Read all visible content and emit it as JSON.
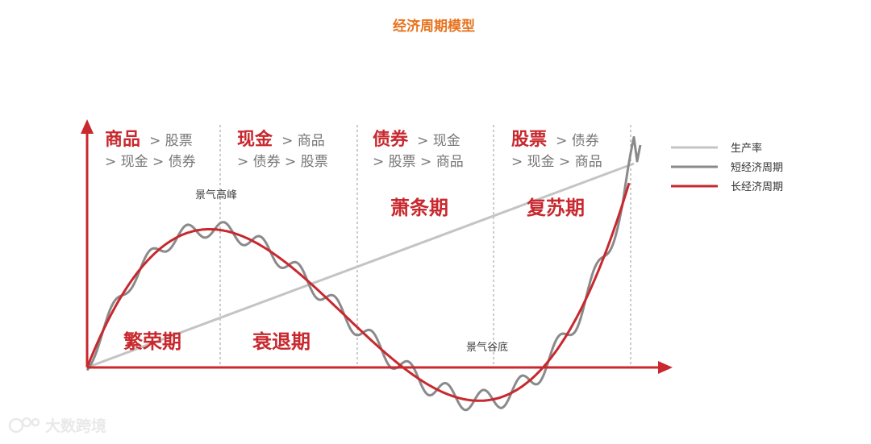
{
  "title": "经济周期模型",
  "phases": [
    {
      "top_strong": "商品",
      "top_rest": "> 股票",
      "sub": "> 现金 > 债券",
      "name": "繁荣期"
    },
    {
      "top_strong": "现金",
      "top_rest": "> 商品",
      "sub": "> 债券 > 股票",
      "name": "衰退期"
    },
    {
      "top_strong": "债券",
      "top_rest": "> 现金",
      "sub": "> 股票 > 商品",
      "name": "萧条期"
    },
    {
      "top_strong": "股票",
      "top_rest": "> 债券",
      "sub": "> 现金 > 商品",
      "name": "复苏期"
    }
  ],
  "annotations": {
    "peak": "景气高峰",
    "trough": "景气谷底"
  },
  "legend": [
    {
      "label": "生产率",
      "color": "#c4c4c4"
    },
    {
      "label": "短经济周期",
      "color": "#8a8a8a"
    },
    {
      "label": "长经济周期",
      "color": "#c8282e"
    }
  ],
  "colors": {
    "axis": "#c8282e",
    "title": "#e8731e",
    "divider": "#999999"
  },
  "watermark": {
    "text": "大数跨境",
    "icon": "logo-icon"
  }
}
